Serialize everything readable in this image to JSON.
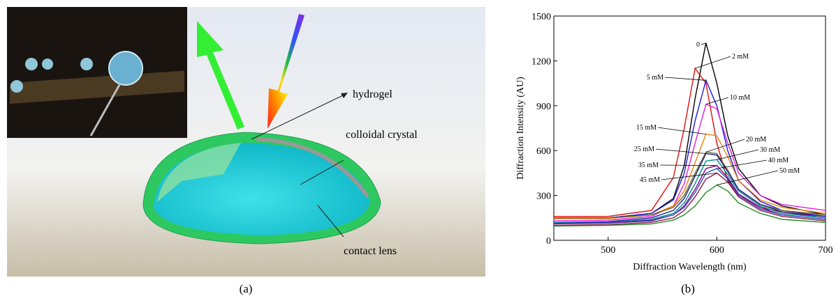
{
  "panel_a": {
    "labels": [
      "hydrogel",
      "colloidal crystal",
      "contact lens"
    ],
    "caption": "(a)"
  },
  "chart_data": {
    "type": "line",
    "caption": "(b)",
    "xlabel": "Diffraction Wavelength (nm)",
    "ylabel": "Diffraction Intensity (AU)",
    "xlim": [
      450,
      700
    ],
    "xticks": [
      500,
      600,
      700
    ],
    "ylim": [
      0,
      1500
    ],
    "yticks": [
      0,
      300,
      600,
      900,
      1200,
      1500
    ],
    "x": [
      450,
      500,
      540,
      560,
      570,
      580,
      590,
      600,
      610,
      620,
      640,
      660,
      700
    ],
    "series": [
      {
        "name": "0",
        "color": "#000000",
        "values": [
          150,
          150,
          180,
          280,
          500,
          950,
          1320,
          1050,
          700,
          480,
          300,
          230,
          170
        ]
      },
      {
        "name": "2 mM",
        "color": "#e01010",
        "values": [
          160,
          160,
          200,
          420,
          750,
          1150,
          1050,
          650,
          400,
          300,
          220,
          190,
          160
        ]
      },
      {
        "name": "5 mM",
        "color": "#1a1ae0",
        "values": [
          150,
          150,
          180,
          270,
          450,
          800,
          1070,
          900,
          600,
          400,
          260,
          200,
          160
        ]
      },
      {
        "name": "10 mM",
        "color": "#e020e0",
        "values": [
          130,
          135,
          160,
          230,
          380,
          650,
          910,
          880,
          650,
          450,
          300,
          240,
          200
        ]
      },
      {
        "name": "15 mM",
        "color": "#f08010",
        "values": [
          145,
          145,
          170,
          230,
          330,
          520,
          710,
          700,
          560,
          400,
          270,
          220,
          180
        ]
      },
      {
        "name": "20 mM",
        "color": "#6b6b2f",
        "values": [
          150,
          150,
          170,
          220,
          300,
          450,
          590,
          580,
          470,
          340,
          240,
          200,
          170
        ]
      },
      {
        "name": "25 mM",
        "color": "#1f1f8f",
        "values": [
          120,
          125,
          150,
          200,
          280,
          430,
          580,
          570,
          460,
          340,
          240,
          190,
          150
        ]
      },
      {
        "name": "30 mM",
        "color": "#008b8b",
        "values": [
          120,
          120,
          140,
          180,
          250,
          380,
          530,
          540,
          440,
          330,
          230,
          180,
          150
        ]
      },
      {
        "name": "35 mM",
        "color": "#800080",
        "values": [
          110,
          115,
          130,
          170,
          230,
          340,
          480,
          500,
          420,
          310,
          220,
          170,
          140
        ]
      },
      {
        "name": "40 mM",
        "color": "#3050c0",
        "values": [
          115,
          120,
          135,
          170,
          220,
          320,
          450,
          480,
          410,
          300,
          210,
          170,
          140
        ]
      },
      {
        "name": "45 mM",
        "color": "#8b1a4a",
        "values": [
          100,
          105,
          120,
          150,
          200,
          290,
          410,
          450,
          390,
          290,
          200,
          160,
          130
        ]
      },
      {
        "name": "50 mM",
        "color": "#228b22",
        "values": [
          95,
          100,
          110,
          135,
          170,
          230,
          320,
          370,
          330,
          250,
          180,
          140,
          120
        ]
      }
    ]
  }
}
